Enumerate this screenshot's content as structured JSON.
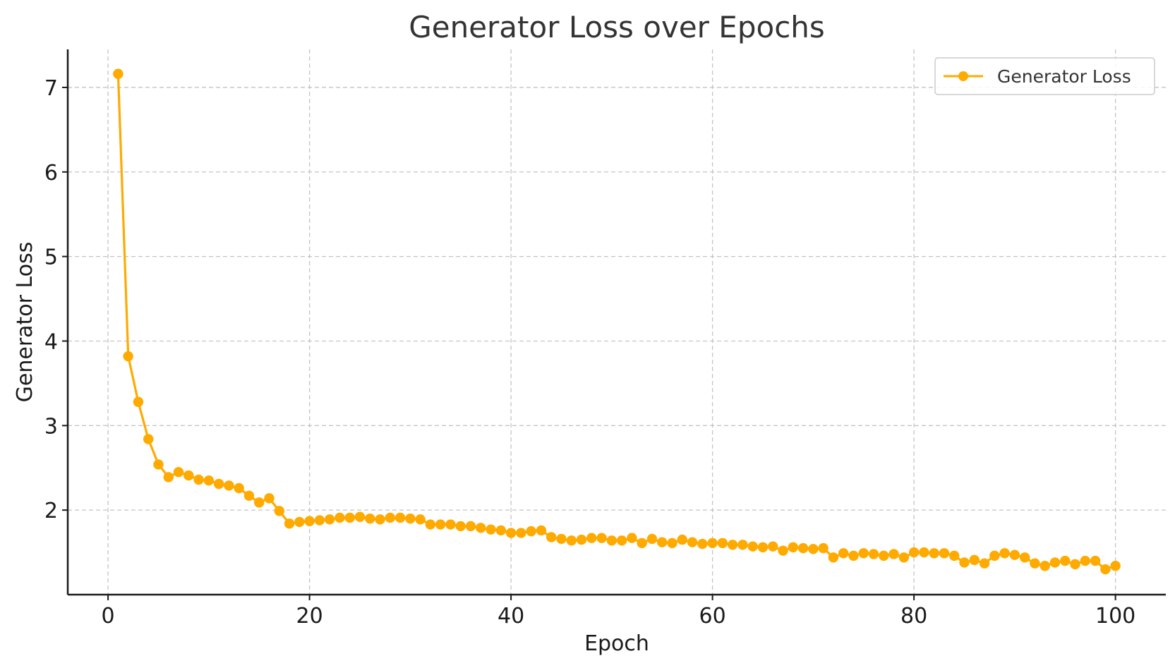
{
  "chart_data": {
    "type": "line",
    "title": "Generator Loss over Epochs",
    "xlabel": "Epoch",
    "ylabel": "Generator Loss",
    "xlim": [
      -4,
      105
    ],
    "ylim": [
      1.0,
      7.45
    ],
    "x_ticks": [
      0,
      20,
      40,
      60,
      80,
      100
    ],
    "y_ticks": [
      2,
      3,
      4,
      5,
      6,
      7
    ],
    "grid": true,
    "legend_position": "top-right",
    "series": [
      {
        "name": "Generator Loss",
        "color": "#FFAA00",
        "marker": "circle",
        "x": [
          1,
          2,
          3,
          4,
          5,
          6,
          7,
          8,
          9,
          10,
          11,
          12,
          13,
          14,
          15,
          16,
          17,
          18,
          19,
          20,
          21,
          22,
          23,
          24,
          25,
          26,
          27,
          28,
          29,
          30,
          31,
          32,
          33,
          34,
          35,
          36,
          37,
          38,
          39,
          40,
          41,
          42,
          43,
          44,
          45,
          46,
          47,
          48,
          49,
          50,
          51,
          52,
          53,
          54,
          55,
          56,
          57,
          58,
          59,
          60,
          61,
          62,
          63,
          64,
          65,
          66,
          67,
          68,
          69,
          70,
          71,
          72,
          73,
          74,
          75,
          76,
          77,
          78,
          79,
          80,
          81,
          82,
          83,
          84,
          85,
          86,
          87,
          88,
          89,
          90,
          91,
          92,
          93,
          94,
          95,
          96,
          97,
          98,
          99,
          100
        ],
        "y": [
          7.16,
          3.82,
          3.28,
          2.84,
          2.54,
          2.39,
          2.45,
          2.41,
          2.36,
          2.35,
          2.31,
          2.29,
          2.26,
          2.17,
          2.09,
          2.14,
          1.99,
          1.84,
          1.86,
          1.87,
          1.88,
          1.89,
          1.91,
          1.91,
          1.92,
          1.9,
          1.89,
          1.91,
          1.91,
          1.9,
          1.89,
          1.83,
          1.83,
          1.83,
          1.81,
          1.81,
          1.79,
          1.77,
          1.76,
          1.73,
          1.73,
          1.75,
          1.76,
          1.68,
          1.66,
          1.64,
          1.65,
          1.67,
          1.67,
          1.64,
          1.64,
          1.67,
          1.61,
          1.66,
          1.62,
          1.61,
          1.65,
          1.62,
          1.6,
          1.61,
          1.61,
          1.59,
          1.59,
          1.57,
          1.56,
          1.57,
          1.52,
          1.56,
          1.55,
          1.54,
          1.55,
          1.44,
          1.49,
          1.46,
          1.49,
          1.48,
          1.46,
          1.48,
          1.44,
          1.5,
          1.5,
          1.49,
          1.49,
          1.46,
          1.38,
          1.41,
          1.37,
          1.46,
          1.49,
          1.47,
          1.44,
          1.37,
          1.34,
          1.38,
          1.4,
          1.36,
          1.4,
          1.4,
          1.3,
          1.34
        ]
      }
    ]
  }
}
